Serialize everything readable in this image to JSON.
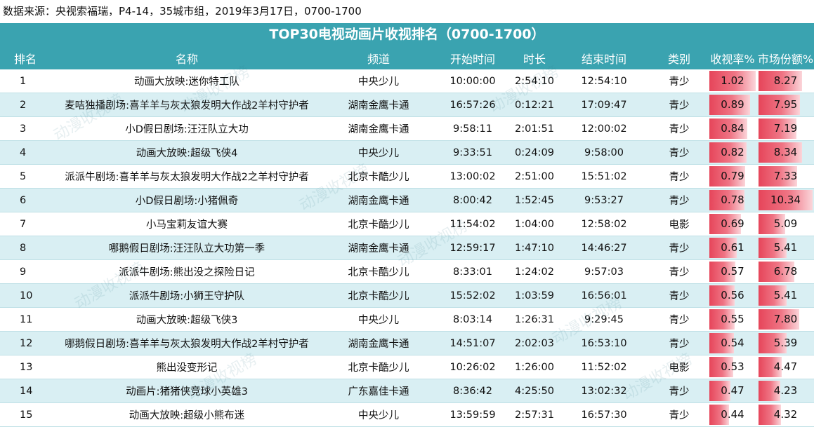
{
  "source": "数据来源：央视索福瑞，P4-14，35城市组，2019年3月17日，0700-1700",
  "title": "TOP30电视动画片收视排名（0700-1700）",
  "watermark_text": "动漫收视榜",
  "columns": [
    "排名",
    "名称",
    "频道",
    "开始时间",
    "时长",
    "结束时间",
    "类别",
    "收视率%",
    "市场份额%"
  ],
  "colors": {
    "header": "#3aa3b0",
    "stripe": "#d9eff3",
    "bar": "#e6455a"
  },
  "rows": [
    {
      "rank": "1",
      "name": "动画大放映:迷你特工队",
      "channel": "中央少儿",
      "start": "10:00:00",
      "duration": "2:54:10",
      "end": "12:54:10",
      "category": "青少",
      "rating": "1.02",
      "share": "8.27"
    },
    {
      "rank": "2",
      "name": "麦咭独播剧场:喜羊羊与灰太狼发明大作战2羊村守护者",
      "channel": "湖南金鹰卡通",
      "start": "16:57:26",
      "duration": "0:12:21",
      "end": "17:09:47",
      "category": "青少",
      "rating": "0.89",
      "share": "7.95"
    },
    {
      "rank": "3",
      "name": "小D假日剧场:汪汪队立大功",
      "channel": "湖南金鹰卡通",
      "start": "9:58:11",
      "duration": "2:01:51",
      "end": "12:00:02",
      "category": "青少",
      "rating": "0.84",
      "share": "7.19"
    },
    {
      "rank": "4",
      "name": "动画大放映:超级飞侠4",
      "channel": "中央少儿",
      "start": "9:33:51",
      "duration": "0:24:09",
      "end": "9:58:00",
      "category": "青少",
      "rating": "0.82",
      "share": "8.34"
    },
    {
      "rank": "5",
      "name": "派派牛剧场:喜羊羊与灰太狼发明大作战2之羊村守护者",
      "channel": "北京卡酷少儿",
      "start": "13:00:02",
      "duration": "2:51:00",
      "end": "15:51:02",
      "category": "青少",
      "rating": "0.79",
      "share": "7.33"
    },
    {
      "rank": "6",
      "name": "小D假日剧场:小猪佩奇",
      "channel": "湖南金鹰卡通",
      "start": "8:00:42",
      "duration": "1:52:45",
      "end": "9:53:27",
      "category": "青少",
      "rating": "0.78",
      "share": "10.34"
    },
    {
      "rank": "7",
      "name": "小马宝莉友谊大赛",
      "channel": "北京卡酷少儿",
      "start": "11:54:02",
      "duration": "1:04:00",
      "end": "12:58:02",
      "category": "电影",
      "rating": "0.69",
      "share": "5.09"
    },
    {
      "rank": "8",
      "name": "哪鹅假日剧场:汪汪队立大功第一季",
      "channel": "湖南金鹰卡通",
      "start": "12:59:17",
      "duration": "1:47:10",
      "end": "14:46:27",
      "category": "青少",
      "rating": "0.61",
      "share": "5.41"
    },
    {
      "rank": "9",
      "name": "派派牛剧场:熊出没之探险日记",
      "channel": "北京卡酷少儿",
      "start": "8:33:01",
      "duration": "1:24:02",
      "end": "9:57:03",
      "category": "青少",
      "rating": "0.57",
      "share": "6.78"
    },
    {
      "rank": "10",
      "name": "派派牛剧场:小狮王守护队",
      "channel": "北京卡酷少儿",
      "start": "15:52:02",
      "duration": "1:03:59",
      "end": "16:56:01",
      "category": "青少",
      "rating": "0.56",
      "share": "5.41"
    },
    {
      "rank": "11",
      "name": "动画大放映:超级飞侠3",
      "channel": "中央少儿",
      "start": "8:03:14",
      "duration": "1:26:31",
      "end": "9:29:45",
      "category": "青少",
      "rating": "0.55",
      "share": "7.80"
    },
    {
      "rank": "12",
      "name": "哪鹅假日剧场:喜羊羊与灰太狼发明大作战2羊村守护者",
      "channel": "湖南金鹰卡通",
      "start": "14:51:07",
      "duration": "2:02:03",
      "end": "16:53:10",
      "category": "青少",
      "rating": "0.54",
      "share": "5.39"
    },
    {
      "rank": "13",
      "name": "熊出没变形记",
      "channel": "北京卡酷少儿",
      "start": "10:26:02",
      "duration": "1:26:00",
      "end": "11:52:02",
      "category": "电影",
      "rating": "0.53",
      "share": "4.47"
    },
    {
      "rank": "14",
      "name": "动画片:猪猪侠竞球小英雄3",
      "channel": "广东嘉佳卡通",
      "start": "8:36:42",
      "duration": "4:25:50",
      "end": "13:02:32",
      "category": "青少",
      "rating": "0.47",
      "share": "4.23"
    },
    {
      "rank": "15",
      "name": "动画大放映:超级小熊布迷",
      "channel": "中央少儿",
      "start": "13:59:59",
      "duration": "2:57:31",
      "end": "16:57:30",
      "category": "青少",
      "rating": "0.44",
      "share": "4.32"
    }
  ]
}
